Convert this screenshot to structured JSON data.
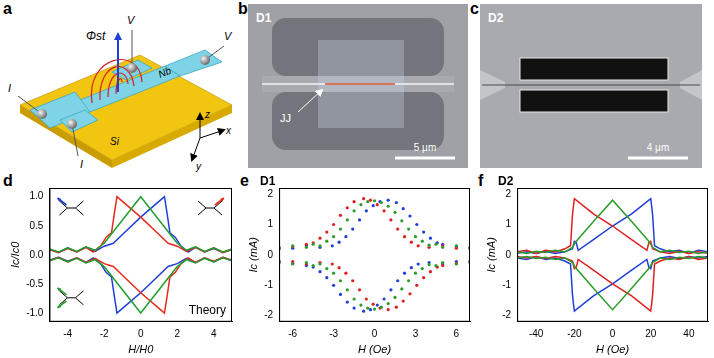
{
  "panel_labels": [
    "a",
    "b",
    "c",
    "d",
    "e",
    "f"
  ],
  "schematic": {
    "voltage_probes": [
      "V",
      "V"
    ],
    "current_leads": [
      "I",
      "I"
    ],
    "flux": "Φst",
    "film": "Nb",
    "substrate": "Si",
    "axes": [
      "z",
      "x",
      "y"
    ]
  },
  "micrographs": [
    {
      "device": "D1",
      "junction": "JJ",
      "scale_bar": "5 μm"
    },
    {
      "device": "D2",
      "scale_bar": "4 μm"
    }
  ],
  "chart_data": [
    {
      "type": "line",
      "annotation": "Theory",
      "x_label": "H/H0",
      "y_label": "Ic/Ic0",
      "xlim": [
        -5,
        5
      ],
      "xticks": [
        -4,
        -2,
        0,
        2,
        4
      ],
      "ylim": [
        -1.15,
        1.15
      ],
      "yticks": [
        {
          "value": -1,
          "label": "-1.0"
        },
        {
          "value": -0.5,
          "label": "-0.5"
        },
        {
          "value": 0,
          "label": "0.0"
        },
        {
          "value": 0.5,
          "label": "0.5"
        },
        {
          "value": 1,
          "label": "1.0"
        }
      ],
      "grid": false,
      "series": [
        {
          "color": "#1f9e2c",
          "x": [
            -5,
            -4.5,
            -4,
            -3.5,
            -3,
            -2.5,
            -2,
            -1,
            0,
            1,
            2,
            2.5,
            3,
            3.5,
            4,
            4.5,
            5
          ],
          "values": [
            0.1,
            0.05,
            0.12,
            0.06,
            0.14,
            0.08,
            0.2,
            0.6,
            1.0,
            0.6,
            0.2,
            0.08,
            0.14,
            0.06,
            0.12,
            0.05,
            0.1
          ]
        },
        {
          "color": "#1f9e2c",
          "x": [
            -5,
            -4.5,
            -4,
            -3.5,
            -3,
            -2.5,
            -2,
            -1,
            0,
            1,
            2,
            2.5,
            3,
            3.5,
            4,
            4.5,
            5
          ],
          "values": [
            -0.1,
            -0.05,
            -0.12,
            -0.06,
            -0.14,
            -0.08,
            -0.2,
            -0.6,
            -1.0,
            -0.6,
            -0.2,
            -0.08,
            -0.14,
            -0.06,
            -0.12,
            -0.05,
            -0.1
          ]
        },
        {
          "color": "#e8291c",
          "x": [
            -5,
            -4.5,
            -4,
            -3.5,
            -3,
            -2.6,
            -2.2,
            -1.9,
            -1.6,
            -1.45,
            -1.3,
            -1,
            0,
            1,
            1.5,
            2,
            2.5,
            3,
            3.5,
            4,
            4.5,
            5
          ],
          "values": [
            0.09,
            0.04,
            0.11,
            0.05,
            0.13,
            0.05,
            0.15,
            0.3,
            0.38,
            0.7,
            1.0,
            0.92,
            0.65,
            0.35,
            0.2,
            0.15,
            0.06,
            0.13,
            0.05,
            0.12,
            0.04,
            0.1
          ]
        },
        {
          "color": "#e8291c",
          "x": [
            -5,
            -4.5,
            -4,
            -3.5,
            -3,
            -2.5,
            -2,
            -1.5,
            -1,
            0,
            1,
            1.3,
            1.45,
            1.6,
            1.9,
            2.2,
            2.6,
            3,
            3.5,
            4,
            4.5,
            5
          ],
          "values": [
            -0.1,
            -0.04,
            -0.12,
            -0.05,
            -0.13,
            -0.06,
            -0.15,
            -0.2,
            -0.35,
            -0.65,
            -0.92,
            -1.0,
            -0.7,
            -0.38,
            -0.3,
            -0.15,
            -0.05,
            -0.13,
            -0.05,
            -0.11,
            -0.04,
            -0.09
          ]
        },
        {
          "color": "#1f3fd6",
          "x": [
            -5,
            -4.5,
            -4,
            -3.5,
            -3,
            -2.5,
            -2,
            -1.5,
            -1,
            0,
            1,
            1.3,
            1.45,
            1.6,
            1.9,
            2.2,
            2.6,
            3,
            3.5,
            4,
            4.5,
            5
          ],
          "values": [
            0.1,
            0.04,
            0.12,
            0.05,
            0.13,
            0.06,
            0.15,
            0.2,
            0.35,
            0.65,
            0.92,
            1.0,
            0.7,
            0.38,
            0.3,
            0.15,
            0.05,
            0.13,
            0.05,
            0.11,
            0.04,
            0.09
          ]
        },
        {
          "color": "#1f3fd6",
          "x": [
            -5,
            -4.5,
            -4,
            -3.5,
            -3,
            -2.6,
            -2.2,
            -1.9,
            -1.6,
            -1.45,
            -1.3,
            -1,
            0,
            1,
            1.5,
            2,
            2.5,
            3,
            3.5,
            4,
            4.5,
            5
          ],
          "values": [
            -0.09,
            -0.04,
            -0.11,
            -0.05,
            -0.13,
            -0.05,
            -0.15,
            -0.3,
            -0.38,
            -0.7,
            -1.0,
            -0.92,
            -0.65,
            -0.35,
            -0.2,
            -0.15,
            -0.06,
            -0.13,
            -0.05,
            -0.12,
            -0.04,
            -0.1
          ]
        }
      ]
    },
    {
      "type": "scatter",
      "annotation": "D1",
      "x_label": "H (Oe)",
      "y_label": "Ic (mA)",
      "xlim": [
        -7,
        7
      ],
      "xticks": [
        -6,
        -3,
        0,
        3,
        6
      ],
      "ylim": [
        -2.2,
        2.2
      ],
      "yticks": [
        -2,
        -1,
        0,
        1,
        2
      ],
      "grid": false,
      "marker": "circle",
      "series": [
        {
          "color": "#2a9d2a",
          "x": [
            -7,
            -6,
            -5,
            -4.5,
            -4,
            -3.5,
            -3,
            -2.5,
            -2,
            -1.5,
            -1,
            -0.5,
            0,
            0.5,
            1,
            1.5,
            2,
            2.5,
            3,
            3.5,
            4,
            4.5,
            5,
            6,
            7
          ],
          "values": [
            0.22,
            0.3,
            0.25,
            0.35,
            0.3,
            0.45,
            0.6,
            0.85,
            1.15,
            1.45,
            1.65,
            1.75,
            1.78,
            1.72,
            1.6,
            1.4,
            1.12,
            0.85,
            0.6,
            0.45,
            0.32,
            0.35,
            0.25,
            0.3,
            0.22
          ]
        },
        {
          "color": "#2a9d2a",
          "x": [
            -7,
            -6,
            -5,
            -4.5,
            -4,
            -3.5,
            -3,
            -2.5,
            -2,
            -1.5,
            -1,
            -0.5,
            0,
            0.5,
            1,
            1.5,
            2,
            2.5,
            3,
            3.5,
            4,
            4.5,
            5,
            6,
            7
          ],
          "values": [
            -0.22,
            -0.3,
            -0.25,
            -0.35,
            -0.3,
            -0.45,
            -0.6,
            -0.85,
            -1.15,
            -1.45,
            -1.65,
            -1.75,
            -1.78,
            -1.72,
            -1.6,
            -1.4,
            -1.12,
            -0.85,
            -0.6,
            -0.45,
            -0.32,
            -0.35,
            -0.25,
            -0.3,
            -0.22
          ]
        },
        {
          "color": "#e02020",
          "x": [
            -7,
            -6,
            -5,
            -4.5,
            -4,
            -3.5,
            -3,
            -2.5,
            -2,
            -1.5,
            -0.8,
            -0.3,
            0.2,
            0.7,
            1.2,
            1.7,
            2.2,
            2.7,
            3.2,
            4,
            5,
            6,
            7
          ],
          "values": [
            0.25,
            0.28,
            0.35,
            0.4,
            0.55,
            0.75,
            1.0,
            1.3,
            1.55,
            1.75,
            1.85,
            1.8,
            1.65,
            1.45,
            1.15,
            0.85,
            0.6,
            0.42,
            0.3,
            0.25,
            0.3,
            0.22,
            0.2
          ]
        },
        {
          "color": "#e02020",
          "x": [
            -7,
            -6,
            -5,
            -4,
            -3.1,
            -2.6,
            -2.1,
            -1.6,
            -1.1,
            -0.6,
            -0.1,
            0.4,
            1.0,
            1.6,
            2.1,
            2.6,
            3.1,
            3.6,
            4.1,
            4.6,
            5,
            6,
            7
          ],
          "values": [
            -0.2,
            -0.22,
            -0.3,
            -0.25,
            -0.3,
            -0.42,
            -0.6,
            -0.85,
            -1.15,
            -1.45,
            -1.62,
            -1.75,
            -1.8,
            -1.72,
            -1.52,
            -1.28,
            -1.0,
            -0.75,
            -0.55,
            -0.4,
            -0.35,
            -0.28,
            -0.25
          ]
        },
        {
          "color": "#1f3fd8",
          "x": [
            -7,
            -6,
            -5,
            -4,
            -3.1,
            -2.6,
            -2.1,
            -1.6,
            -1.1,
            -0.6,
            -0.1,
            0.4,
            1.0,
            1.6,
            2.1,
            2.6,
            3.1,
            3.6,
            4.1,
            4.6,
            5,
            6,
            7
          ],
          "values": [
            0.2,
            0.22,
            0.3,
            0.25,
            0.3,
            0.42,
            0.6,
            0.85,
            1.15,
            1.45,
            1.62,
            1.75,
            1.8,
            1.72,
            1.52,
            1.28,
            1.0,
            0.75,
            0.55,
            0.4,
            0.35,
            0.28,
            0.25
          ]
        },
        {
          "color": "#1f3fd8",
          "x": [
            -7,
            -6,
            -5,
            -4.5,
            -4,
            -3.5,
            -3,
            -2.5,
            -2,
            -1.5,
            -0.8,
            -0.3,
            0.2,
            0.7,
            1.2,
            1.7,
            2.2,
            2.7,
            3.2,
            4,
            5,
            6,
            7
          ],
          "values": [
            -0.25,
            -0.28,
            -0.35,
            -0.4,
            -0.55,
            -0.75,
            -1.0,
            -1.3,
            -1.55,
            -1.75,
            -1.85,
            -1.8,
            -1.65,
            -1.45,
            -1.15,
            -0.85,
            -0.6,
            -0.42,
            -0.3,
            -0.25,
            -0.3,
            -0.22,
            -0.2
          ]
        }
      ]
    },
    {
      "type": "line",
      "annotation": "D2",
      "x_label": "H (Oe)",
      "y_label": "Ic (mA)",
      "xlim": [
        -50,
        50
      ],
      "xticks": [
        -40,
        -20,
        0,
        20,
        40
      ],
      "ylim": [
        -2.2,
        2.2
      ],
      "yticks": [
        -2,
        -1,
        0,
        1,
        2
      ],
      "grid": false,
      "series": [
        {
          "color": "#2a9d2a",
          "x": [
            -50,
            -45,
            -40,
            -35,
            -30,
            -25,
            -21,
            -20,
            -19,
            -10,
            0,
            10,
            19,
            20,
            21,
            25,
            30,
            35,
            40,
            45,
            50
          ],
          "values": [
            0.1,
            0.05,
            0.12,
            0.08,
            0.15,
            0.1,
            0.25,
            0.35,
            0.45,
            1.1,
            1.8,
            1.1,
            0.45,
            0.35,
            0.25,
            0.1,
            0.15,
            0.08,
            0.12,
            0.05,
            0.1
          ]
        },
        {
          "color": "#2a9d2a",
          "x": [
            -50,
            -45,
            -40,
            -35,
            -30,
            -25,
            -21,
            -20,
            -19,
            -10,
            0,
            10,
            19,
            20,
            21,
            25,
            30,
            35,
            40,
            45,
            50
          ],
          "values": [
            -0.1,
            -0.05,
            -0.12,
            -0.08,
            -0.15,
            -0.1,
            -0.25,
            -0.35,
            -0.45,
            -1.1,
            -1.8,
            -1.1,
            -0.45,
            -0.35,
            -0.25,
            -0.1,
            -0.15,
            -0.08,
            -0.12,
            -0.05,
            -0.1
          ]
        },
        {
          "color": "#e02020",
          "x": [
            -50,
            -45,
            -40,
            -35,
            -30,
            -25,
            -22,
            -21.5,
            -21,
            -20.5,
            -20,
            -10,
            0,
            10,
            18,
            19,
            20,
            21,
            25,
            30,
            35,
            40,
            45,
            50
          ],
          "values": [
            0.1,
            0.15,
            0.05,
            0.15,
            0.1,
            0.2,
            0.3,
            0.8,
            1.3,
            1.6,
            1.85,
            1.35,
            0.95,
            0.5,
            0.15,
            0.4,
            0.45,
            0.2,
            0.1,
            0.05,
            0.12,
            0.05,
            0.1,
            0.05
          ]
        },
        {
          "color": "#e02020",
          "x": [
            -50,
            -45,
            -40,
            -35,
            -30,
            -25,
            -21,
            -20,
            -19,
            -18,
            -10,
            0,
            10,
            20,
            20.5,
            21,
            21.5,
            22,
            25,
            30,
            35,
            40,
            45,
            50
          ],
          "values": [
            -0.05,
            -0.1,
            -0.05,
            -0.12,
            -0.05,
            -0.1,
            -0.2,
            -0.45,
            -0.4,
            -0.15,
            -0.5,
            -0.95,
            -1.35,
            -1.85,
            -1.6,
            -1.3,
            -0.8,
            -0.3,
            -0.2,
            -0.1,
            -0.15,
            -0.05,
            -0.15,
            -0.1
          ]
        },
        {
          "color": "#1f3fd8",
          "x": [
            -50,
            -45,
            -40,
            -35,
            -30,
            -25,
            -21,
            -20,
            -19,
            -18,
            -10,
            0,
            10,
            20,
            20.5,
            21,
            21.5,
            22,
            25,
            30,
            35,
            40,
            45,
            50
          ],
          "values": [
            0.05,
            0.1,
            0.05,
            0.12,
            0.05,
            0.1,
            0.2,
            0.45,
            0.4,
            0.15,
            0.5,
            0.95,
            1.35,
            1.85,
            1.6,
            1.3,
            0.8,
            0.3,
            0.2,
            0.1,
            0.15,
            0.05,
            0.15,
            0.1
          ]
        },
        {
          "color": "#1f3fd8",
          "x": [
            -50,
            -45,
            -40,
            -35,
            -30,
            -25,
            -22,
            -21.5,
            -21,
            -20.5,
            -20,
            -10,
            0,
            10,
            18,
            19,
            20,
            21,
            25,
            30,
            35,
            40,
            45,
            50
          ],
          "values": [
            -0.1,
            -0.15,
            -0.05,
            -0.15,
            -0.1,
            -0.2,
            -0.3,
            -0.8,
            -1.3,
            -1.6,
            -1.85,
            -1.35,
            -0.95,
            -0.5,
            -0.15,
            -0.4,
            -0.45,
            -0.2,
            -0.1,
            -0.05,
            -0.12,
            -0.05,
            -0.1,
            -0.05
          ]
        }
      ]
    }
  ]
}
